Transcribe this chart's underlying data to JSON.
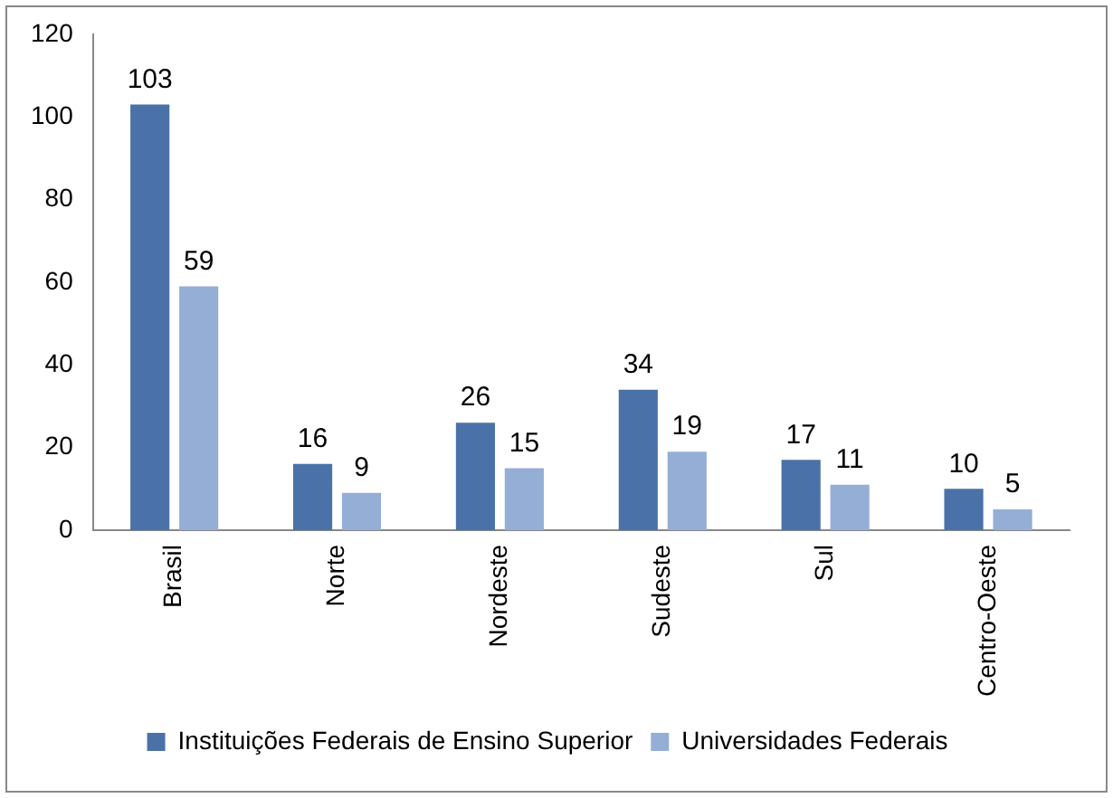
{
  "chart_data": {
    "type": "bar",
    "categories": [
      "Brasil",
      "Norte",
      "Nordeste",
      "Sudeste",
      "Sul",
      "Centro-Oeste"
    ],
    "series": [
      {
        "name": "Instituições Federais de Ensino Superior",
        "color": "#4a72a8",
        "values": [
          103,
          16,
          26,
          34,
          17,
          10
        ]
      },
      {
        "name": "Universidades Federais",
        "color": "#95aed6",
        "values": [
          59,
          9,
          15,
          19,
          11,
          5
        ]
      }
    ],
    "ylim": [
      0,
      120
    ],
    "yticks": [
      0,
      20,
      40,
      60,
      80,
      100,
      120
    ],
    "grid": false,
    "legend": "bottom",
    "data_labels": true
  }
}
